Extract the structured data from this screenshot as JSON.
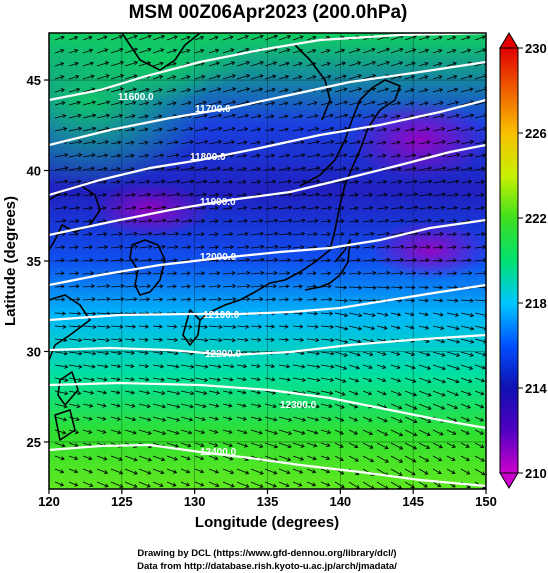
{
  "title": "MSM 00Z06Apr2023 (200.0hPa)",
  "axes": {
    "xlabel": "Longitude (degrees)",
    "ylabel": "Latitude  (degrees)",
    "x_ticks": [
      "120",
      "125",
      "130",
      "135",
      "140",
      "145",
      "150"
    ],
    "y_ticks": [
      "45",
      "40",
      "35",
      "30",
      "25"
    ],
    "x_range": [
      120,
      150
    ],
    "y_range": [
      22.4,
      47.6
    ]
  },
  "colorbar": {
    "min": 210,
    "max": 230,
    "ticks": [
      "230",
      "226",
      "222",
      "218",
      "214",
      "210"
    ],
    "colors": [
      "#cc00cc",
      "#1010b0",
      "#0050ff",
      "#00c8ff",
      "#00e070",
      "#40e020",
      "#c8f000",
      "#f8c000",
      "#f06000",
      "#e00000"
    ]
  },
  "contours": [
    {
      "label": "11600.0",
      "value": 11600
    },
    {
      "label": "11700.0",
      "value": 11700
    },
    {
      "label": "11800.0",
      "value": 11800
    },
    {
      "label": "11900.0",
      "value": 11900
    },
    {
      "label": "12000.0",
      "value": 12000
    },
    {
      "label": "12100.0",
      "value": 12100
    },
    {
      "label": "12200.0",
      "value": 12200
    },
    {
      "label": "12300.0",
      "value": 12300
    },
    {
      "label": "12400.0",
      "value": 12400
    }
  ],
  "credits": {
    "line1": "Drawing by DCL (https://www.gfd-dennou.org/library/dcl/)",
    "line2": "Data from http://database.rish.kyoto-u.ac.jp/arch/jmadata/"
  }
}
